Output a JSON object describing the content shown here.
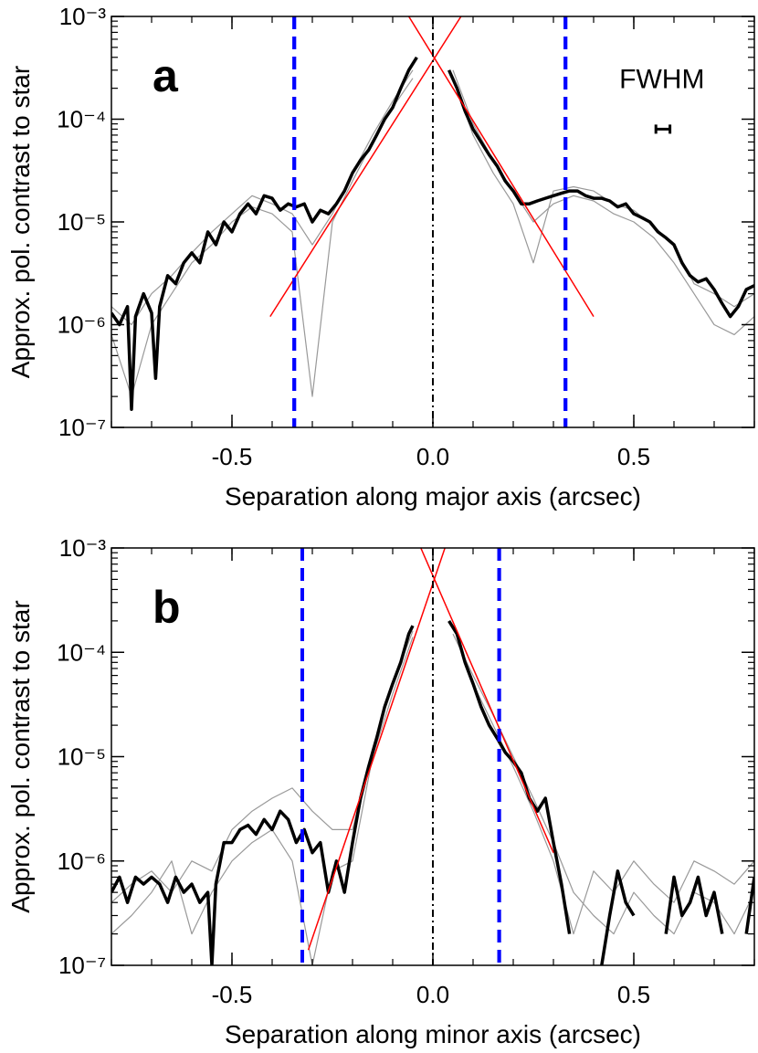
{
  "chart_data": [
    {
      "type": "line",
      "panel_label": "a",
      "xlabel": "Separation along major axis (arcsec)",
      "ylabel": "Approx. pol. contrast to star",
      "xlim": [
        -0.8,
        0.8
      ],
      "ylim": [
        1e-07,
        0.001
      ],
      "log_y": true,
      "xticks": [
        -0.5,
        {
          "value": 0,
          "label": "0.0"
        },
        0.5
      ],
      "yticks": [
        {
          "value": 1e-07,
          "label": "10⁻⁷"
        },
        {
          "value": 1e-06,
          "label": "10⁻⁶"
        },
        {
          "value": 1e-05,
          "label": "10⁻⁵"
        },
        {
          "value": 0.0001,
          "label": "10⁻⁴"
        },
        {
          "value": 0.001,
          "label": "10⁻³"
        }
      ],
      "series": [
        {
          "color": "#999999",
          "linewidth": 1.2,
          "x": [
            -0.8,
            -0.75,
            -0.7,
            -0.65,
            -0.6,
            -0.55,
            -0.5,
            -0.45,
            -0.4,
            -0.35,
            -0.3,
            -0.25,
            -0.2,
            -0.15,
            -0.1,
            -0.05,
            0,
            0.05,
            0.1,
            0.15,
            0.2,
            0.25,
            0.3,
            0.35,
            0.4,
            0.45,
            0.5,
            0.55,
            0.6,
            0.65,
            0.7,
            0.75,
            0.8
          ],
          "values": [
            1.5e-06,
            1e-06,
            2e-06,
            3e-06,
            5e-06,
            8e-06,
            1.2e-05,
            1.8e-05,
            1.5e-05,
            1.2e-05,
            6e-06,
            1.2e-05,
            3e-05,
            7e-05,
            0.00015,
            0.0003,
            null,
            0.00025,
            7e-05,
            3e-05,
            1.5e-05,
            4e-06,
            2e-05,
            2.2e-05,
            2e-05,
            1.5e-05,
            1.3e-05,
            9e-06,
            6e-06,
            2.5e-06,
            2e-06,
            1.5e-06,
            2e-06
          ]
        },
        {
          "color": "#999999",
          "linewidth": 1.2,
          "x": [
            -0.8,
            -0.75,
            -0.7,
            -0.65,
            -0.6,
            -0.55,
            -0.5,
            -0.45,
            -0.4,
            -0.35,
            -0.3,
            -0.25,
            -0.2,
            -0.15,
            -0.1,
            -0.05,
            0,
            0.05,
            0.1,
            0.15,
            0.2,
            0.25,
            0.3,
            0.35,
            0.4,
            0.45,
            0.5,
            0.55,
            0.6,
            0.65,
            0.7,
            0.75,
            0.8
          ],
          "values": [
            8e-07,
            2e-07,
            1e-06,
            2e-06,
            4e-06,
            6e-06,
            1e-05,
            1.4e-05,
            1.2e-05,
            8e-06,
            2e-07,
            1e-05,
            2.5e-05,
            6e-05,
            0.00013,
            0.00025,
            null,
            0.0003,
            9e-05,
            4e-05,
            2e-05,
            1e-05,
            1.5e-05,
            1.8e-05,
            1.6e-05,
            1.2e-05,
            1e-05,
            7e-06,
            4e-06,
            2e-06,
            1e-06,
            8e-07,
            1.2e-06
          ]
        },
        {
          "color": "#000000",
          "linewidth": 3.5,
          "x": [
            -0.8,
            -0.78,
            -0.76,
            -0.75,
            -0.74,
            -0.72,
            -0.7,
            -0.69,
            -0.68,
            -0.66,
            -0.64,
            -0.62,
            -0.6,
            -0.58,
            -0.56,
            -0.54,
            -0.52,
            -0.5,
            -0.48,
            -0.46,
            -0.44,
            -0.42,
            -0.4,
            -0.38,
            -0.36,
            -0.34,
            -0.32,
            -0.3,
            -0.28,
            -0.26,
            -0.24,
            -0.22,
            -0.2,
            -0.18,
            -0.16,
            -0.14,
            -0.12,
            -0.1,
            -0.08,
            -0.06,
            -0.04,
            0,
            0.04,
            0.06,
            0.08,
            0.1,
            0.12,
            0.14,
            0.16,
            0.18,
            0.2,
            0.22,
            0.24,
            0.26,
            0.28,
            0.3,
            0.32,
            0.34,
            0.36,
            0.38,
            0.4,
            0.42,
            0.44,
            0.46,
            0.48,
            0.5,
            0.52,
            0.54,
            0.56,
            0.58,
            0.6,
            0.62,
            0.64,
            0.66,
            0.68,
            0.7,
            0.72,
            0.74,
            0.76,
            0.78,
            0.8
          ],
          "values": [
            1.3e-06,
            1e-06,
            1.5e-06,
            1.5e-07,
            1.2e-06,
            2e-06,
            1.3e-06,
            3e-07,
            1.5e-06,
            3e-06,
            2.5e-06,
            4e-06,
            5e-06,
            4e-06,
            8e-06,
            6e-06,
            1e-05,
            8e-06,
            1.2e-05,
            1.5e-05,
            1.2e-05,
            1.8e-05,
            1.7e-05,
            1.3e-05,
            1.5e-05,
            1.4e-05,
            1.5e-05,
            1e-05,
            1.3e-05,
            1.2e-05,
            1.5e-05,
            2e-05,
            3e-05,
            4e-05,
            5e-05,
            7e-05,
            0.0001,
            0.00013,
            0.0002,
            0.0003,
            0.0004,
            null,
            0.0003,
            0.0002,
            0.00012,
            8e-05,
            6e-05,
            4.5e-05,
            3.5e-05,
            2.5e-05,
            2e-05,
            1.5e-05,
            1.5e-05,
            1.6e-05,
            1.7e-05,
            1.8e-05,
            1.9e-05,
            2e-05,
            2e-05,
            1.8e-05,
            1.7e-05,
            1.7e-05,
            1.6e-05,
            1.4e-05,
            1.5e-05,
            1.2e-05,
            1.1e-05,
            1e-05,
            8e-06,
            7e-06,
            6e-06,
            4e-06,
            3e-06,
            2.6e-06,
            2.8e-06,
            2.2e-06,
            1.6e-06,
            1.2e-06,
            1.5e-06,
            2.2e-06,
            2.4e-06
          ]
        },
        {
          "color": "#ff0000",
          "linewidth": 1.5,
          "x": [
            -0.405,
            0.07
          ],
          "values": [
            1.2e-06,
            0.001
          ]
        },
        {
          "color": "#ff0000",
          "linewidth": 1.5,
          "x": [
            -0.06,
            0.4
          ],
          "values": [
            0.001,
            1.2e-06
          ]
        }
      ],
      "vlines": [
        {
          "x": -0.345,
          "color": "#0000ff",
          "style": "dashed"
        },
        {
          "x": 0.33,
          "color": "#0000ff",
          "style": "dashed"
        },
        {
          "x": 0,
          "color": "#000000",
          "style": "dashdot"
        }
      ],
      "annotation": {
        "text": "FWHM",
        "x": 0.57,
        "y": 0.0002
      },
      "errorbar": {
        "x": [
          0.555,
          0.59
        ],
        "y": 8e-05
      }
    },
    {
      "type": "line",
      "panel_label": "b",
      "xlabel": "Separation along minor axis (arcsec)",
      "ylabel": "Approx. pol. contrast to star",
      "xlim": [
        -0.8,
        0.8
      ],
      "ylim": [
        1e-07,
        0.001
      ],
      "log_y": true,
      "xticks": [
        -0.5,
        {
          "value": 0,
          "label": "0.0"
        },
        0.5
      ],
      "yticks": [
        {
          "value": 1e-07,
          "label": "10⁻⁷"
        },
        {
          "value": 1e-06,
          "label": "10⁻⁶"
        },
        {
          "value": 1e-05,
          "label": "10⁻⁵"
        },
        {
          "value": 0.0001,
          "label": "10⁻⁴"
        },
        {
          "value": 0.001,
          "label": "10⁻³"
        }
      ],
      "series": [
        {
          "color": "#999999",
          "linewidth": 1.2,
          "x": [
            -0.8,
            -0.75,
            -0.7,
            -0.65,
            -0.6,
            -0.55,
            -0.5,
            -0.45,
            -0.4,
            -0.35,
            -0.3,
            -0.25,
            -0.2,
            -0.15,
            -0.1,
            -0.05,
            0,
            0.05,
            0.1,
            0.15,
            0.2,
            0.25,
            0.3,
            0.35,
            0.4,
            0.45,
            0.5,
            0.55,
            0.6,
            0.65,
            0.7,
            0.75,
            0.8
          ],
          "values": [
            4e-07,
            6e-07,
            8e-07,
            5e-07,
            1e-06,
            8e-07,
            2e-06,
            3e-06,
            4e-06,
            5e-06,
            3e-06,
            2e-06,
            2e-06,
            1.2e-05,
            5e-05,
            0.00016,
            null,
            0.00018,
            5e-05,
            2e-05,
            8e-06,
            3e-06,
            1e-06,
            2e-07,
            8e-07,
            5e-07,
            1e-06,
            6e-07,
            4e-07,
            1e-06,
            8e-07,
            6e-07,
            1e-06
          ]
        },
        {
          "color": "#999999",
          "linewidth": 1.2,
          "x": [
            -0.8,
            -0.75,
            -0.7,
            -0.65,
            -0.6,
            -0.55,
            -0.5,
            -0.45,
            -0.4,
            -0.35,
            -0.3,
            -0.25,
            -0.2,
            -0.15,
            -0.1,
            -0.05,
            0,
            0.05,
            0.1,
            0.15,
            0.2,
            0.25,
            0.3,
            0.35,
            0.4,
            0.45,
            0.5,
            0.55,
            0.6,
            0.65,
            0.7,
            0.75,
            0.8
          ],
          "values": [
            2e-07,
            3e-07,
            5e-07,
            1e-06,
            2e-07,
            5e-07,
            1e-06,
            1.5e-06,
            2e-06,
            1e-06,
            1e-07,
            8e-07,
            1e-06,
            1e-05,
            4e-05,
            0.00014,
            null,
            0.00015,
            6e-05,
            2.5e-05,
            1e-05,
            4e-06,
            1.5e-06,
            5e-07,
            3e-07,
            2e-07,
            5e-07,
            3e-07,
            2e-07,
            5e-07,
            4e-07,
            2e-07,
            5e-07
          ]
        },
        {
          "color": "#000000",
          "linewidth": 3.5,
          "x": [
            -0.8,
            -0.78,
            -0.76,
            -0.74,
            -0.72,
            -0.7,
            -0.68,
            -0.66,
            -0.64,
            -0.62,
            -0.6,
            -0.58,
            -0.56,
            -0.55,
            -0.54,
            -0.52,
            -0.5,
            -0.48,
            -0.46,
            -0.44,
            -0.42,
            -0.4,
            -0.38,
            -0.36,
            -0.34,
            -0.32,
            -0.3,
            -0.28,
            -0.26,
            -0.24,
            -0.22,
            -0.2,
            -0.18,
            -0.16,
            -0.14,
            -0.12,
            -0.1,
            -0.08,
            -0.06,
            -0.05,
            0,
            0.04,
            0.06,
            0.08,
            0.1,
            0.12,
            0.14,
            0.16,
            0.18,
            0.2,
            0.22,
            0.24,
            0.26,
            0.28,
            0.3,
            0.32,
            0.34,
            0.36,
            0.42,
            0.44,
            0.46,
            0.48,
            0.5,
            0.52,
            0.58,
            0.6,
            0.62,
            0.64,
            0.66,
            0.68,
            0.7,
            0.72,
            0.74,
            0.78,
            0.8
          ],
          "values": [
            5e-07,
            7e-07,
            4e-07,
            7e-07,
            6e-07,
            7e-07,
            6e-07,
            4e-07,
            7e-07,
            5e-07,
            6e-07,
            4e-07,
            5e-07,
            1e-07,
            6e-07,
            1.5e-06,
            1.5e-06,
            2e-06,
            2.2e-06,
            1.8e-06,
            2.5e-06,
            2e-06,
            3e-06,
            2.5e-06,
            1.5e-06,
            2e-06,
            1.2e-06,
            1.5e-06,
            5e-07,
            1e-06,
            5e-07,
            1.5e-06,
            4e-06,
            8e-06,
            1.5e-05,
            3e-05,
            5e-05,
            8e-05,
            0.00015,
            0.00018,
            null,
            0.0002,
            0.00015,
            8e-05,
            5e-05,
            3e-05,
            2e-05,
            1.5e-05,
            1.1e-05,
            9e-06,
            7e-06,
            4e-06,
            3e-06,
            4e-06,
            1.5e-06,
            6e-07,
            2e-07,
            null,
            1e-07,
            3e-07,
            8e-07,
            4e-07,
            3e-07,
            null,
            2e-07,
            7e-07,
            3e-07,
            4e-07,
            7e-07,
            3e-07,
            5e-07,
            2e-07,
            null,
            2e-07,
            7e-07
          ]
        },
        {
          "color": "#ff0000",
          "linewidth": 1.5,
          "x": [
            -0.31,
            0.03
          ],
          "values": [
            1.4e-07,
            0.001
          ]
        },
        {
          "color": "#ff0000",
          "linewidth": 1.5,
          "x": [
            -0.03,
            0.3
          ],
          "values": [
            0.001,
            1.2e-06
          ]
        }
      ],
      "vlines": [
        {
          "x": -0.325,
          "color": "#0000ff",
          "style": "dashed"
        },
        {
          "x": 0.165,
          "color": "#0000ff",
          "style": "dashed"
        },
        {
          "x": 0,
          "color": "#000000",
          "style": "dashdot"
        }
      ]
    }
  ]
}
